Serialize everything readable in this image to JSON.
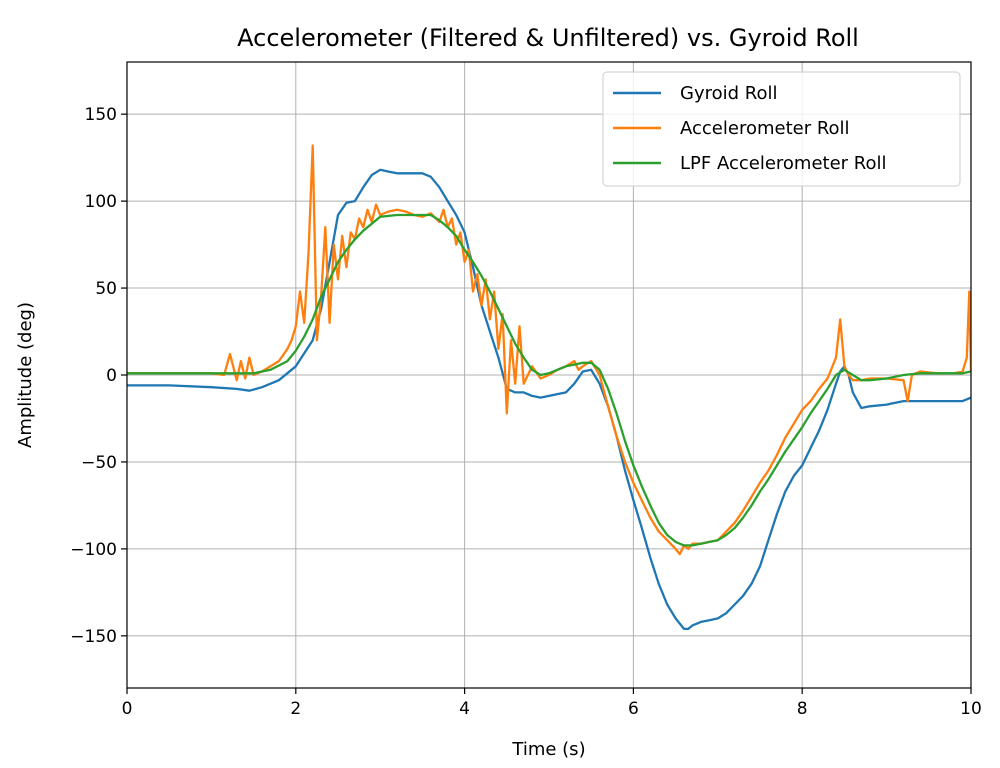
{
  "chart_data": {
    "type": "line",
    "title": "Accelerometer (Filtered & Unfiltered) vs. Gyroid Roll",
    "xlabel": "Time (s)",
    "ylabel": "Amplitude (deg)",
    "xlim": [
      0,
      10
    ],
    "ylim": [
      -180,
      180
    ],
    "xticks": [
      0,
      2,
      4,
      6,
      8,
      10
    ],
    "yticks": [
      -150,
      -100,
      -50,
      0,
      50,
      100,
      150
    ],
    "xtick_labels": [
      "0",
      "2",
      "4",
      "6",
      "8",
      "10"
    ],
    "ytick_labels": [
      "−150",
      "−100",
      "−50",
      "0",
      "50",
      "100",
      "150"
    ],
    "grid": true,
    "legend_position": "top-right",
    "series": [
      {
        "name": "Gyroid Roll",
        "color": "#1f77b4",
        "x": [
          0,
          0.5,
          1.0,
          1.3,
          1.45,
          1.6,
          1.8,
          2.0,
          2.2,
          2.3,
          2.4,
          2.5,
          2.6,
          2.7,
          2.8,
          2.9,
          3.0,
          3.1,
          3.2,
          3.4,
          3.5,
          3.6,
          3.7,
          3.8,
          3.9,
          4.0,
          4.1,
          4.2,
          4.3,
          4.4,
          4.5,
          4.6,
          4.7,
          4.8,
          4.9,
          5.0,
          5.1,
          5.2,
          5.3,
          5.4,
          5.5,
          5.6,
          5.7,
          5.8,
          5.9,
          6.0,
          6.1,
          6.2,
          6.3,
          6.4,
          6.5,
          6.6,
          6.65,
          6.7,
          6.8,
          6.9,
          7.0,
          7.1,
          7.2,
          7.3,
          7.4,
          7.5,
          7.6,
          7.7,
          7.8,
          7.9,
          8.0,
          8.1,
          8.2,
          8.3,
          8.4,
          8.45,
          8.5,
          8.55,
          8.6,
          8.7,
          8.8,
          9.0,
          9.2,
          9.4,
          9.6,
          9.8,
          9.9,
          10.0
        ],
        "values": [
          -6,
          -6,
          -7,
          -8,
          -9,
          -7,
          -3,
          5,
          20,
          38,
          65,
          92,
          99,
          100,
          108,
          115,
          118,
          117,
          116,
          116,
          116,
          114,
          108,
          100,
          92,
          82,
          62,
          40,
          25,
          10,
          -8,
          -10,
          -10,
          -12,
          -13,
          -12,
          -11,
          -10,
          -5,
          2,
          3,
          -5,
          -18,
          -35,
          -55,
          -72,
          -88,
          -105,
          -120,
          -132,
          -140,
          -146,
          -146,
          -144,
          -142,
          -141,
          -140,
          -137,
          -132,
          -127,
          -120,
          -110,
          -95,
          -80,
          -67,
          -58,
          -52,
          -42,
          -32,
          -20,
          -5,
          2,
          5,
          0,
          -10,
          -19,
          -18,
          -17,
          -15,
          -15,
          -15,
          -15,
          -15,
          -13
        ]
      },
      {
        "name": "Accelerometer Roll",
        "color": "#ff7f0e",
        "x": [
          0,
          0.5,
          1.0,
          1.15,
          1.22,
          1.3,
          1.35,
          1.4,
          1.45,
          1.5,
          1.6,
          1.8,
          1.9,
          1.95,
          2.0,
          2.05,
          2.1,
          2.15,
          2.2,
          2.25,
          2.3,
          2.35,
          2.4,
          2.45,
          2.5,
          2.55,
          2.6,
          2.65,
          2.7,
          2.75,
          2.8,
          2.85,
          2.9,
          2.95,
          3.0,
          3.1,
          3.2,
          3.3,
          3.4,
          3.5,
          3.6,
          3.7,
          3.75,
          3.8,
          3.85,
          3.9,
          3.95,
          4.0,
          4.05,
          4.1,
          4.15,
          4.2,
          4.25,
          4.3,
          4.35,
          4.4,
          4.45,
          4.5,
          4.55,
          4.6,
          4.65,
          4.7,
          4.8,
          4.9,
          5.0,
          5.1,
          5.2,
          5.3,
          5.35,
          5.4,
          5.5,
          5.6,
          5.7,
          5.8,
          5.9,
          6.0,
          6.1,
          6.2,
          6.3,
          6.4,
          6.5,
          6.55,
          6.6,
          6.65,
          6.7,
          6.8,
          6.9,
          7.0,
          7.1,
          7.2,
          7.3,
          7.4,
          7.5,
          7.6,
          7.7,
          7.8,
          7.9,
          8.0,
          8.1,
          8.2,
          8.3,
          8.4,
          8.45,
          8.5,
          8.55,
          8.6,
          8.7,
          8.8,
          9.0,
          9.2,
          9.25,
          9.3,
          9.4,
          9.6,
          9.8,
          9.9,
          9.95,
          9.98,
          10.0
        ],
        "values": [
          1,
          1,
          1,
          0,
          12,
          -3,
          8,
          -2,
          10,
          0,
          2,
          8,
          15,
          20,
          28,
          48,
          30,
          70,
          132,
          20,
          45,
          85,
          30,
          75,
          55,
          80,
          62,
          82,
          78,
          90,
          85,
          95,
          88,
          98,
          92,
          94,
          95,
          94,
          92,
          91,
          93,
          88,
          95,
          85,
          90,
          75,
          82,
          65,
          72,
          48,
          58,
          40,
          55,
          32,
          48,
          15,
          35,
          -22,
          20,
          -5,
          28,
          -5,
          5,
          -2,
          0,
          3,
          5,
          8,
          3,
          5,
          8,
          0,
          -18,
          -35,
          -50,
          -62,
          -72,
          -82,
          -90,
          -95,
          -100,
          -103,
          -98,
          -100,
          -97,
          -97,
          -96,
          -95,
          -90,
          -85,
          -78,
          -70,
          -62,
          -55,
          -46,
          -36,
          -28,
          -20,
          -15,
          -8,
          -2,
          10,
          32,
          5,
          0,
          -3,
          -3,
          -2,
          -2,
          -3,
          -15,
          0,
          2,
          1,
          1,
          2,
          10,
          48,
          2
        ]
      },
      {
        "name": "LPF Accelerometer Roll",
        "color": "#2ca02c",
        "x": [
          0,
          0.5,
          1.0,
          1.5,
          1.7,
          1.9,
          2.0,
          2.1,
          2.2,
          2.3,
          2.4,
          2.5,
          2.6,
          2.7,
          2.8,
          2.9,
          3.0,
          3.2,
          3.4,
          3.5,
          3.6,
          3.7,
          3.8,
          3.9,
          4.0,
          4.1,
          4.2,
          4.3,
          4.4,
          4.5,
          4.6,
          4.7,
          4.8,
          4.9,
          5.0,
          5.1,
          5.2,
          5.3,
          5.4,
          5.5,
          5.6,
          5.7,
          5.8,
          5.9,
          6.0,
          6.1,
          6.2,
          6.3,
          6.4,
          6.5,
          6.6,
          6.7,
          6.8,
          6.9,
          7.0,
          7.1,
          7.2,
          7.3,
          7.4,
          7.5,
          7.6,
          7.7,
          7.8,
          7.9,
          8.0,
          8.1,
          8.2,
          8.3,
          8.4,
          8.5,
          8.6,
          8.7,
          8.8,
          9.0,
          9.2,
          9.4,
          9.6,
          9.8,
          9.9,
          10.0
        ],
        "values": [
          1,
          1,
          1,
          1,
          3,
          8,
          14,
          22,
          32,
          45,
          55,
          65,
          72,
          78,
          83,
          87,
          91,
          92,
          92,
          92,
          92,
          89,
          85,
          80,
          72,
          65,
          57,
          48,
          38,
          28,
          18,
          10,
          3,
          0,
          1,
          3,
          5,
          6,
          7,
          7,
          3,
          -8,
          -22,
          -38,
          -52,
          -64,
          -75,
          -85,
          -92,
          -96,
          -98,
          -98,
          -97,
          -96,
          -95,
          -92,
          -88,
          -82,
          -75,
          -67,
          -60,
          -52,
          -44,
          -37,
          -30,
          -22,
          -15,
          -8,
          0,
          3,
          0,
          -3,
          -3,
          -2,
          0,
          1,
          1,
          1,
          1,
          2
        ]
      }
    ]
  }
}
